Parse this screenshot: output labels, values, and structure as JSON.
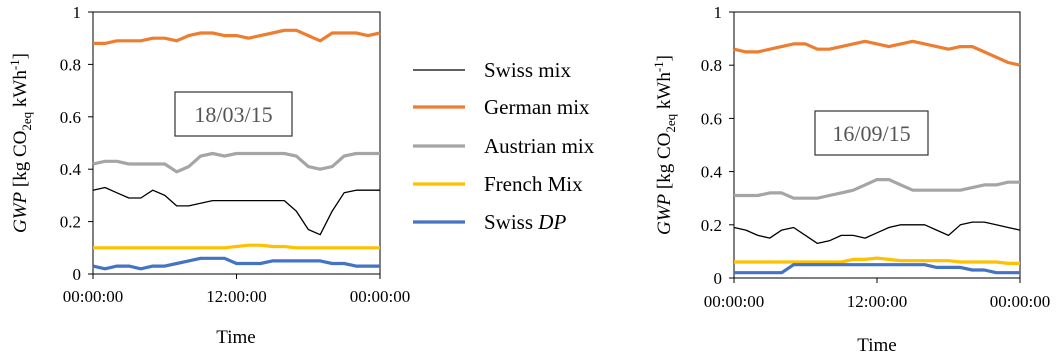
{
  "chart_data": [
    {
      "type": "line",
      "annotation": "18/03/15",
      "xlabel": "Time",
      "ylabel": "GWP [kg CO2eq kWh-1]",
      "ylim": [
        0,
        1
      ],
      "yticks": [
        "0",
        "0.2",
        "0.4",
        "0.6",
        "0.8",
        "1"
      ],
      "xticks": [
        "00:00:00",
        "12:00:00",
        "00:00:00"
      ],
      "x": [
        0,
        1,
        2,
        3,
        4,
        5,
        6,
        7,
        8,
        9,
        10,
        11,
        12,
        13,
        14,
        15,
        16,
        17,
        18,
        19,
        20,
        21,
        22,
        23,
        24
      ],
      "series": [
        {
          "name": "Swiss mix",
          "color": "#000000",
          "values": [
            0.32,
            0.33,
            0.31,
            0.29,
            0.29,
            0.32,
            0.3,
            0.26,
            0.26,
            0.27,
            0.28,
            0.28,
            0.28,
            0.28,
            0.28,
            0.28,
            0.28,
            0.24,
            0.17,
            0.15,
            0.24,
            0.31,
            0.32,
            0.32,
            0.32
          ]
        },
        {
          "name": "German mix",
          "color": "#ED7D31",
          "values": [
            0.88,
            0.88,
            0.89,
            0.89,
            0.89,
            0.9,
            0.9,
            0.89,
            0.91,
            0.92,
            0.92,
            0.91,
            0.91,
            0.9,
            0.91,
            0.92,
            0.93,
            0.93,
            0.91,
            0.89,
            0.92,
            0.92,
            0.92,
            0.91,
            0.92
          ]
        },
        {
          "name": "Austrian mix",
          "color": "#A5A5A5",
          "values": [
            0.42,
            0.43,
            0.43,
            0.42,
            0.42,
            0.42,
            0.42,
            0.39,
            0.41,
            0.45,
            0.46,
            0.45,
            0.46,
            0.46,
            0.46,
            0.46,
            0.46,
            0.45,
            0.41,
            0.4,
            0.41,
            0.45,
            0.46,
            0.46,
            0.46
          ]
        },
        {
          "name": "French Mix",
          "color": "#FFC000",
          "values": [
            0.1,
            0.1,
            0.1,
            0.1,
            0.1,
            0.1,
            0.1,
            0.1,
            0.1,
            0.1,
            0.1,
            0.1,
            0.105,
            0.11,
            0.11,
            0.105,
            0.105,
            0.1,
            0.1,
            0.1,
            0.1,
            0.1,
            0.1,
            0.1,
            0.1
          ]
        },
        {
          "name": "Swiss DP",
          "color": "#4472C4",
          "values": [
            0.03,
            0.02,
            0.03,
            0.03,
            0.02,
            0.03,
            0.03,
            0.04,
            0.05,
            0.06,
            0.06,
            0.06,
            0.04,
            0.04,
            0.04,
            0.05,
            0.05,
            0.05,
            0.05,
            0.05,
            0.04,
            0.04,
            0.03,
            0.03,
            0.03
          ]
        }
      ]
    },
    {
      "type": "line",
      "annotation": "16/09/15",
      "xlabel": "Time",
      "ylabel": "GWP [kg CO2eq kWh-1]",
      "ylim": [
        0,
        1
      ],
      "yticks": [
        "0",
        "0.2",
        "0.4",
        "0.6",
        "0.8",
        "1"
      ],
      "xticks": [
        "00:00:00",
        "12:00:00",
        "00:00:00"
      ],
      "x": [
        0,
        1,
        2,
        3,
        4,
        5,
        6,
        7,
        8,
        9,
        10,
        11,
        12,
        13,
        14,
        15,
        16,
        17,
        18,
        19,
        20,
        21,
        22,
        23,
        24
      ],
      "series": [
        {
          "name": "Swiss mix",
          "color": "#000000",
          "values": [
            0.19,
            0.18,
            0.16,
            0.15,
            0.18,
            0.19,
            0.16,
            0.13,
            0.14,
            0.16,
            0.16,
            0.15,
            0.17,
            0.19,
            0.2,
            0.2,
            0.2,
            0.18,
            0.16,
            0.2,
            0.21,
            0.21,
            0.2,
            0.19,
            0.18
          ]
        },
        {
          "name": "German mix",
          "color": "#ED7D31",
          "values": [
            0.86,
            0.85,
            0.85,
            0.86,
            0.87,
            0.88,
            0.88,
            0.86,
            0.86,
            0.87,
            0.88,
            0.89,
            0.88,
            0.87,
            0.88,
            0.89,
            0.88,
            0.87,
            0.86,
            0.87,
            0.87,
            0.85,
            0.83,
            0.81,
            0.8
          ]
        },
        {
          "name": "Austrian mix",
          "color": "#A5A5A5",
          "values": [
            0.31,
            0.31,
            0.31,
            0.32,
            0.32,
            0.3,
            0.3,
            0.3,
            0.31,
            0.32,
            0.33,
            0.35,
            0.37,
            0.37,
            0.35,
            0.33,
            0.33,
            0.33,
            0.33,
            0.33,
            0.34,
            0.35,
            0.35,
            0.36,
            0.36
          ]
        },
        {
          "name": "French Mix",
          "color": "#FFC000",
          "values": [
            0.06,
            0.06,
            0.06,
            0.06,
            0.06,
            0.06,
            0.06,
            0.06,
            0.06,
            0.06,
            0.07,
            0.07,
            0.075,
            0.07,
            0.065,
            0.065,
            0.065,
            0.065,
            0.065,
            0.06,
            0.06,
            0.06,
            0.06,
            0.055,
            0.055
          ]
        },
        {
          "name": "Swiss DP",
          "color": "#4472C4",
          "values": [
            0.02,
            0.02,
            0.02,
            0.02,
            0.02,
            0.05,
            0.05,
            0.05,
            0.05,
            0.05,
            0.05,
            0.05,
            0.05,
            0.05,
            0.05,
            0.05,
            0.05,
            0.04,
            0.04,
            0.04,
            0.03,
            0.03,
            0.02,
            0.02,
            0.02
          ]
        }
      ]
    }
  ]
}
